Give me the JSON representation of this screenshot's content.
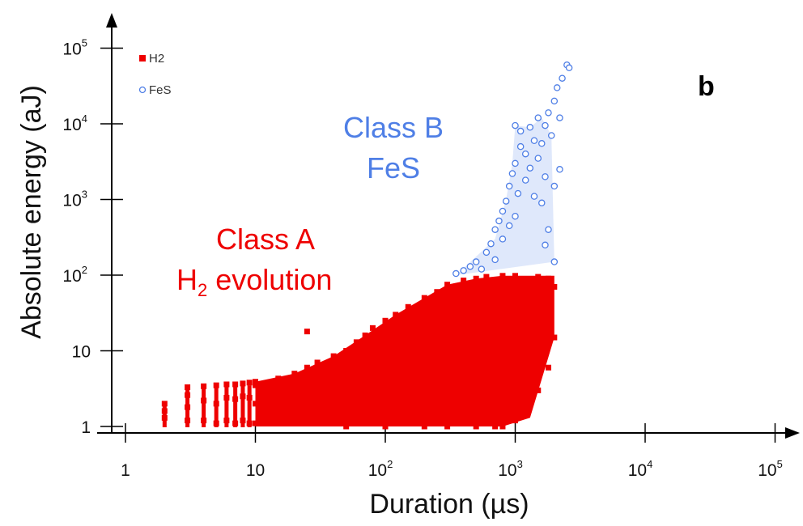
{
  "chart_data": {
    "type": "scatter",
    "panel_label": "b",
    "xlabel": "Duration (µs)",
    "ylabel": "Absolute energy (aJ)",
    "xscale": "log",
    "yscale": "log",
    "xlim": [
      0.8,
      200000
    ],
    "ylim": [
      0.8,
      150000
    ],
    "x_ticks": [
      {
        "value": 1,
        "base": "1",
        "exp": ""
      },
      {
        "value": 10,
        "base": "10",
        "exp": ""
      },
      {
        "value": 100,
        "base": "10",
        "exp": "2"
      },
      {
        "value": 1000,
        "base": "10",
        "exp": "3"
      },
      {
        "value": 10000,
        "base": "10",
        "exp": "4"
      },
      {
        "value": 100000,
        "base": "10",
        "exp": "5"
      }
    ],
    "y_ticks": [
      {
        "value": 1,
        "base": "1",
        "exp": ""
      },
      {
        "value": 10,
        "base": "10",
        "exp": ""
      },
      {
        "value": 100,
        "base": "10",
        "exp": "2"
      },
      {
        "value": 1000,
        "base": "10",
        "exp": "3"
      },
      {
        "value": 10000,
        "base": "10",
        "exp": "4"
      },
      {
        "value": 100000,
        "base": "10",
        "exp": "5"
      }
    ],
    "grid": false,
    "legend_position": "top-left",
    "series": [
      {
        "name": "H2",
        "color": "#ee0000",
        "marker": "filled-square",
        "points": [
          [
            2,
            1.3
          ],
          [
            2,
            1.6
          ],
          [
            2,
            2.0
          ],
          [
            3,
            1.2
          ],
          [
            3,
            1.8
          ],
          [
            3,
            2.6
          ],
          [
            3,
            3.3
          ],
          [
            4,
            1.2
          ],
          [
            4,
            2.2
          ],
          [
            4,
            3.4
          ],
          [
            5,
            1.1
          ],
          [
            5,
            2.0
          ],
          [
            5,
            3.5
          ],
          [
            6,
            1.2
          ],
          [
            6,
            2.4
          ],
          [
            6,
            3.6
          ],
          [
            7,
            1.1
          ],
          [
            7,
            2.3
          ],
          [
            7,
            3.6
          ],
          [
            8,
            1.2
          ],
          [
            8,
            2.5
          ],
          [
            8,
            3.7
          ],
          [
            9,
            1.1
          ],
          [
            9,
            2.4
          ],
          [
            9,
            3.8
          ],
          [
            10,
            1.1
          ],
          [
            10,
            2.0
          ],
          [
            10,
            3.5
          ],
          [
            10,
            3.9
          ],
          [
            12,
            1.2
          ],
          [
            12,
            3.4
          ],
          [
            15,
            1.1
          ],
          [
            15,
            2.6
          ],
          [
            15,
            4.3
          ],
          [
            20,
            1.3
          ],
          [
            20,
            3.0
          ],
          [
            20,
            5.0
          ],
          [
            25,
            18
          ],
          [
            25,
            1.1
          ],
          [
            25,
            6.0
          ],
          [
            30,
            1.2
          ],
          [
            30,
            3.8
          ],
          [
            30,
            7.0
          ],
          [
            40,
            1.1
          ],
          [
            40,
            5.0
          ],
          [
            40,
            8.5
          ],
          [
            50,
            1.0
          ],
          [
            50,
            2.5
          ],
          [
            50,
            6.0
          ],
          [
            50,
            10
          ],
          [
            60,
            1.2
          ],
          [
            60,
            13
          ],
          [
            70,
            2.0
          ],
          [
            70,
            9.0
          ],
          [
            70,
            16
          ],
          [
            80,
            1.1
          ],
          [
            80,
            20
          ],
          [
            100,
            1.0
          ],
          [
            100,
            4.0
          ],
          [
            100,
            12
          ],
          [
            100,
            25
          ],
          [
            120,
            1.2
          ],
          [
            120,
            30
          ],
          [
            150,
            1.1
          ],
          [
            150,
            6.0
          ],
          [
            150,
            20
          ],
          [
            150,
            38
          ],
          [
            200,
            1.0
          ],
          [
            200,
            8.0
          ],
          [
            200,
            30
          ],
          [
            200,
            50
          ],
          [
            250,
            1.1
          ],
          [
            250,
            60
          ],
          [
            300,
            1.0
          ],
          [
            300,
            10
          ],
          [
            300,
            40
          ],
          [
            300,
            75
          ],
          [
            400,
            1.2
          ],
          [
            400,
            85
          ],
          [
            500,
            1.0
          ],
          [
            500,
            15
          ],
          [
            500,
            55
          ],
          [
            500,
            90
          ],
          [
            600,
            1.1
          ],
          [
            600,
            95
          ],
          [
            700,
            1.0
          ],
          [
            700,
            25
          ],
          [
            700,
            70
          ],
          [
            800,
            1.0
          ],
          [
            800,
            98
          ],
          [
            1000,
            1.2
          ],
          [
            1000,
            35
          ],
          [
            1000,
            98
          ],
          [
            1200,
            2.0
          ],
          [
            1200,
            60
          ],
          [
            1500,
            3.0
          ],
          [
            1500,
            50
          ],
          [
            1500,
            95
          ],
          [
            1800,
            6.0
          ],
          [
            1800,
            40
          ],
          [
            1800,
            90
          ],
          [
            2000,
            15
          ],
          [
            2000,
            70
          ]
        ]
      },
      {
        "name": "FeS",
        "color": "#4f7fe6",
        "marker": "open-circle",
        "points": [
          [
            350,
            105
          ],
          [
            400,
            115
          ],
          [
            450,
            130
          ],
          [
            500,
            150
          ],
          [
            550,
            120
          ],
          [
            600,
            200
          ],
          [
            650,
            260
          ],
          [
            700,
            160
          ],
          [
            700,
            400
          ],
          [
            750,
            520
          ],
          [
            800,
            300
          ],
          [
            800,
            700
          ],
          [
            850,
            950
          ],
          [
            900,
            1500
          ],
          [
            900,
            450
          ],
          [
            950,
            2200
          ],
          [
            1000,
            600
          ],
          [
            1000,
            3000
          ],
          [
            1000,
            9500
          ],
          [
            1050,
            1200
          ],
          [
            1100,
            5000
          ],
          [
            1100,
            8000
          ],
          [
            1200,
            1800
          ],
          [
            1200,
            4000
          ],
          [
            1300,
            2600
          ],
          [
            1300,
            9000
          ],
          [
            1400,
            1100
          ],
          [
            1400,
            6000
          ],
          [
            1500,
            3500
          ],
          [
            1500,
            12000
          ],
          [
            1600,
            900
          ],
          [
            1600,
            5500
          ],
          [
            1700,
            2000
          ],
          [
            1700,
            9500
          ],
          [
            1800,
            14000
          ],
          [
            1800,
            400
          ],
          [
            1900,
            7000
          ],
          [
            2000,
            1500
          ],
          [
            2000,
            20000
          ],
          [
            2100,
            30000
          ],
          [
            2200,
            12000
          ],
          [
            2200,
            2500
          ],
          [
            2300,
            40000
          ],
          [
            2500,
            60000
          ],
          [
            2600,
            55000
          ],
          [
            2000,
            150
          ],
          [
            1700,
            250
          ]
        ]
      }
    ],
    "annotations": [
      {
        "id": "class-a",
        "lines": [
          "Class A",
          "H",
          "2",
          " evolution"
        ],
        "color": "#ee0000"
      },
      {
        "id": "class-b",
        "lines": [
          "Class B",
          "FeS"
        ],
        "color": "#4f7fe6"
      }
    ]
  },
  "annotation_text": {
    "class_a_line1": "Class A",
    "class_a_line2_main": "H",
    "class_a_line2_sub": "2",
    "class_a_line2_rest": " evolution",
    "class_b_line1": "Class B",
    "class_b_line2": "FeS"
  }
}
